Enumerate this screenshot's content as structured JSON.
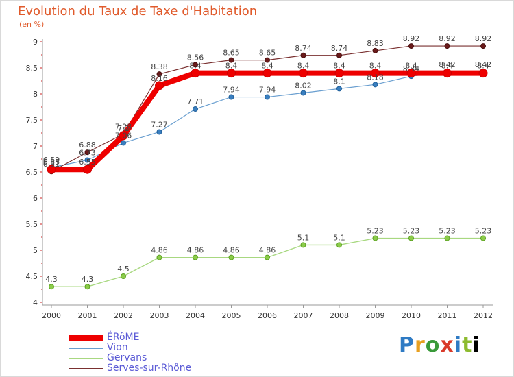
{
  "chart_data": {
    "type": "line",
    "title": "Evolution du Taux de Taxe d'Habitation",
    "ylabel": "(en %)",
    "xlabel": "",
    "x": [
      "2000",
      "2001",
      "2002",
      "2003",
      "2004",
      "2005",
      "2006",
      "2007",
      "2008",
      "2009",
      "2010",
      "2011",
      "2012"
    ],
    "yticks": [
      "4",
      "4.5",
      "5",
      "5.5",
      "6",
      "6.5",
      "7",
      "7.5",
      "8",
      "8.5",
      "9"
    ],
    "ylim": [
      4,
      9
    ],
    "grid": false,
    "legend_position": "bottom-left",
    "series": [
      {
        "name": "ÉRôME",
        "color": "#ee0000",
        "values": [
          6.55,
          6.55,
          7.2,
          8.16,
          8.4,
          8.4,
          8.4,
          8.4,
          8.4,
          8.4,
          8.4,
          8.4,
          8.4
        ],
        "labels": [
          "6.55",
          "6.55",
          "7.2",
          "8.16",
          "8.4",
          "8.4",
          "8.4",
          "8.4",
          "8.4",
          "8.4",
          "8.4",
          "8.4",
          "8.4"
        ]
      },
      {
        "name": "Vion",
        "color": "#6a9fd0",
        "values": [
          6.59,
          6.73,
          7.06,
          7.27,
          7.71,
          7.94,
          7.94,
          8.02,
          8.1,
          8.18,
          8.34,
          8.42,
          8.42
        ],
        "labels": [
          "6.59",
          "6.73",
          "7.06",
          "7.27",
          "7.71",
          "7.94",
          "7.94",
          "8.02",
          "8.1",
          "8.18",
          "8.34",
          "8.42",
          "8.42"
        ]
      },
      {
        "name": "Gervans",
        "color": "#a8d880",
        "values": [
          4.3,
          4.3,
          4.5,
          4.86,
          4.86,
          4.86,
          4.86,
          5.1,
          5.1,
          5.23,
          5.23,
          5.23,
          5.23
        ],
        "labels": [
          "4.3",
          "4.3",
          "4.5",
          "4.86",
          "4.86",
          "4.86",
          "4.86",
          "5.1",
          "5.1",
          "5.23",
          "5.23",
          "5.23",
          "5.23"
        ]
      },
      {
        "name": "Serves-sur-Rhône",
        "color": "#7a3030",
        "values": [
          6.51,
          6.88,
          7.23,
          8.38,
          8.56,
          8.65,
          8.65,
          8.74,
          8.74,
          8.83,
          8.92,
          8.92,
          8.92
        ],
        "labels": [
          "6.51",
          "6.88",
          "7.23",
          "8.38",
          "8.56",
          "8.65",
          "8.65",
          "8.74",
          "8.74",
          "8.83",
          "8.92",
          "8.92",
          "8.92"
        ]
      }
    ]
  },
  "legend": {
    "items": [
      {
        "label": "ÉRôME",
        "color": "#ee0000"
      },
      {
        "label": "Vion",
        "color": "#6a9fd0"
      },
      {
        "label": "Gervans",
        "color": "#a8d880"
      },
      {
        "label": "Serves-sur-Rhône",
        "color": "#7a3030"
      }
    ]
  },
  "logo": {
    "letters": [
      "P",
      "r",
      "o",
      "x",
      "i",
      "t",
      "i"
    ],
    "text": "Proxiti"
  }
}
